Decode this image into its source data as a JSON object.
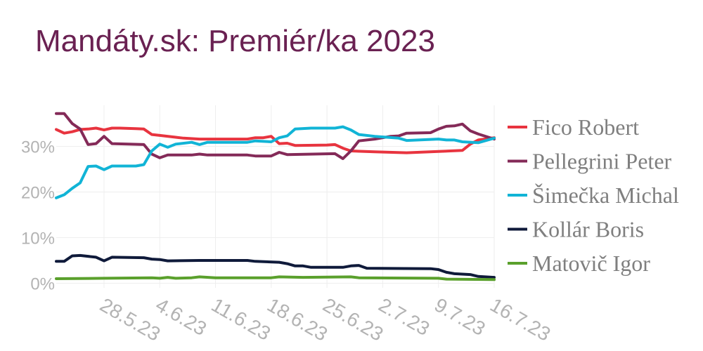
{
  "title": "Mandáty.sk: Premiér/ka 2023",
  "chart_data": {
    "type": "line",
    "title": "Mandáty.sk: Premiér/ka 2023",
    "xlabel": "",
    "ylabel": "",
    "x_ticks": [
      {
        "label": "28.5.23",
        "date": "2023-05-28"
      },
      {
        "label": "4.6.23",
        "date": "2023-06-04"
      },
      {
        "label": "11.6.23",
        "date": "2023-06-11"
      },
      {
        "label": "18.6.23",
        "date": "2023-06-18"
      },
      {
        "label": "25.6.23",
        "date": "2023-06-25"
      },
      {
        "label": "2.7.23",
        "date": "2023-07-02"
      },
      {
        "label": "9.7.23",
        "date": "2023-07-09"
      },
      {
        "label": "16.7.23",
        "date": "2023-07-16"
      }
    ],
    "xlim": [
      "2023-05-22",
      "2023-07-16"
    ],
    "y_ticks": [
      {
        "label": "0%",
        "value": 0
      },
      {
        "label": "10%",
        "value": 10
      },
      {
        "label": "20%",
        "value": 20
      },
      {
        "label": "30%",
        "value": 30
      }
    ],
    "ylim": [
      -1,
      39
    ],
    "grid": true,
    "legend_position": "right",
    "series": [
      {
        "name": "Fico Robert",
        "color": "#e8343f",
        "points": [
          [
            "2023-05-22",
            33.7
          ],
          [
            "2023-05-23",
            32.9
          ],
          [
            "2023-05-24",
            33.2
          ],
          [
            "2023-05-25",
            33.7
          ],
          [
            "2023-05-26",
            33.8
          ],
          [
            "2023-05-27",
            34.0
          ],
          [
            "2023-05-28",
            33.6
          ],
          [
            "2023-05-29",
            34.0
          ],
          [
            "2023-05-30",
            34.0
          ],
          [
            "2023-06-01",
            33.9
          ],
          [
            "2023-06-02",
            33.8
          ],
          [
            "2023-06-03",
            32.6
          ],
          [
            "2023-06-04",
            32.4
          ],
          [
            "2023-06-06",
            32.0
          ],
          [
            "2023-06-07",
            31.8
          ],
          [
            "2023-06-09",
            31.6
          ],
          [
            "2023-06-11",
            31.6
          ],
          [
            "2023-06-13",
            31.6
          ],
          [
            "2023-06-15",
            31.6
          ],
          [
            "2023-06-16",
            31.9
          ],
          [
            "2023-06-17",
            31.9
          ],
          [
            "2023-06-18",
            32.2
          ],
          [
            "2023-06-19",
            30.6
          ],
          [
            "2023-06-20",
            30.7
          ],
          [
            "2023-06-21",
            30.2
          ],
          [
            "2023-06-25",
            30.3
          ],
          [
            "2023-06-26",
            30.4
          ],
          [
            "2023-06-27",
            29.6
          ],
          [
            "2023-06-28",
            29.0
          ],
          [
            "2023-07-01",
            28.8
          ],
          [
            "2023-07-05",
            28.6
          ],
          [
            "2023-07-09",
            28.9
          ],
          [
            "2023-07-12",
            29.1
          ],
          [
            "2023-07-13",
            30.5
          ],
          [
            "2023-07-14",
            31.4
          ],
          [
            "2023-07-16",
            31.9
          ]
        ]
      },
      {
        "name": "Pellegrini Peter",
        "color": "#842a58",
        "points": [
          [
            "2023-05-22",
            37.2
          ],
          [
            "2023-05-23",
            37.2
          ],
          [
            "2023-05-24",
            35.0
          ],
          [
            "2023-05-25",
            33.8
          ],
          [
            "2023-05-26",
            30.4
          ],
          [
            "2023-05-27",
            30.6
          ],
          [
            "2023-05-28",
            32.2
          ],
          [
            "2023-05-29",
            30.6
          ],
          [
            "2023-06-02",
            30.4
          ],
          [
            "2023-06-03",
            28.3
          ],
          [
            "2023-06-04",
            27.5
          ],
          [
            "2023-06-05",
            28.1
          ],
          [
            "2023-06-08",
            28.1
          ],
          [
            "2023-06-09",
            28.3
          ],
          [
            "2023-06-10",
            28.1
          ],
          [
            "2023-06-15",
            28.1
          ],
          [
            "2023-06-16",
            27.9
          ],
          [
            "2023-06-18",
            27.9
          ],
          [
            "2023-06-19",
            28.7
          ],
          [
            "2023-06-20",
            28.2
          ],
          [
            "2023-06-26",
            28.4
          ],
          [
            "2023-06-27",
            27.3
          ],
          [
            "2023-06-28",
            29.0
          ],
          [
            "2023-06-29",
            31.2
          ],
          [
            "2023-07-01",
            31.6
          ],
          [
            "2023-07-03",
            32.2
          ],
          [
            "2023-07-04",
            32.3
          ],
          [
            "2023-07-05",
            32.9
          ],
          [
            "2023-07-08",
            33.0
          ],
          [
            "2023-07-09",
            33.8
          ],
          [
            "2023-07-10",
            34.4
          ],
          [
            "2023-07-11",
            34.5
          ],
          [
            "2023-07-12",
            34.9
          ],
          [
            "2023-07-13",
            33.4
          ],
          [
            "2023-07-14",
            32.7
          ],
          [
            "2023-07-16",
            31.6
          ]
        ]
      },
      {
        "name": "Šimečka Michal",
        "color": "#11b4d6",
        "points": [
          [
            "2023-05-22",
            18.7
          ],
          [
            "2023-05-23",
            19.4
          ],
          [
            "2023-05-24",
            20.8
          ],
          [
            "2023-05-25",
            22.0
          ],
          [
            "2023-05-26",
            25.6
          ],
          [
            "2023-05-27",
            25.7
          ],
          [
            "2023-05-28",
            24.9
          ],
          [
            "2023-05-29",
            25.7
          ],
          [
            "2023-06-01",
            25.7
          ],
          [
            "2023-06-02",
            26.0
          ],
          [
            "2023-06-03",
            29.0
          ],
          [
            "2023-06-04",
            30.5
          ],
          [
            "2023-06-05",
            29.8
          ],
          [
            "2023-06-06",
            30.5
          ],
          [
            "2023-06-08",
            30.9
          ],
          [
            "2023-06-09",
            30.4
          ],
          [
            "2023-06-10",
            30.9
          ],
          [
            "2023-06-15",
            30.9
          ],
          [
            "2023-06-16",
            31.2
          ],
          [
            "2023-06-18",
            31.0
          ],
          [
            "2023-06-19",
            31.9
          ],
          [
            "2023-06-20",
            32.3
          ],
          [
            "2023-06-21",
            33.8
          ],
          [
            "2023-06-23",
            34.0
          ],
          [
            "2023-06-26",
            34.0
          ],
          [
            "2023-06-27",
            34.3
          ],
          [
            "2023-06-28",
            33.6
          ],
          [
            "2023-06-29",
            32.6
          ],
          [
            "2023-07-01",
            32.2
          ],
          [
            "2023-07-04",
            31.8
          ],
          [
            "2023-07-05",
            31.3
          ],
          [
            "2023-07-09",
            31.6
          ],
          [
            "2023-07-10",
            31.4
          ],
          [
            "2023-07-11",
            31.4
          ],
          [
            "2023-07-12",
            31.0
          ],
          [
            "2023-07-14",
            30.8
          ],
          [
            "2023-07-16",
            31.8
          ]
        ]
      },
      {
        "name": "Kollár Boris",
        "color": "#0f1a3a",
        "points": [
          [
            "2023-05-22",
            4.8
          ],
          [
            "2023-05-23",
            4.8
          ],
          [
            "2023-05-24",
            6.0
          ],
          [
            "2023-05-25",
            6.1
          ],
          [
            "2023-05-27",
            5.7
          ],
          [
            "2023-05-28",
            4.9
          ],
          [
            "2023-05-29",
            5.7
          ],
          [
            "2023-06-02",
            5.6
          ],
          [
            "2023-06-03",
            5.3
          ],
          [
            "2023-06-04",
            5.2
          ],
          [
            "2023-06-05",
            4.9
          ],
          [
            "2023-06-09",
            5.0
          ],
          [
            "2023-06-15",
            5.0
          ],
          [
            "2023-06-16",
            4.8
          ],
          [
            "2023-06-19",
            4.6
          ],
          [
            "2023-06-20",
            4.3
          ],
          [
            "2023-06-21",
            3.8
          ],
          [
            "2023-06-22",
            3.8
          ],
          [
            "2023-06-23",
            3.5
          ],
          [
            "2023-06-27",
            3.5
          ],
          [
            "2023-06-28",
            3.8
          ],
          [
            "2023-06-29",
            3.9
          ],
          [
            "2023-06-30",
            3.3
          ],
          [
            "2023-07-08",
            3.2
          ],
          [
            "2023-07-09",
            3.0
          ],
          [
            "2023-07-10",
            2.4
          ],
          [
            "2023-07-11",
            2.1
          ],
          [
            "2023-07-12",
            2.0
          ],
          [
            "2023-07-13",
            1.9
          ],
          [
            "2023-07-14",
            1.5
          ],
          [
            "2023-07-16",
            1.3
          ]
        ]
      },
      {
        "name": "Matovič Igor",
        "color": "#5aa02c",
        "points": [
          [
            "2023-05-22",
            1.0
          ],
          [
            "2023-05-28",
            1.1
          ],
          [
            "2023-06-03",
            1.2
          ],
          [
            "2023-06-04",
            1.1
          ],
          [
            "2023-06-05",
            1.3
          ],
          [
            "2023-06-06",
            1.1
          ],
          [
            "2023-06-08",
            1.2
          ],
          [
            "2023-06-09",
            1.4
          ],
          [
            "2023-06-11",
            1.2
          ],
          [
            "2023-06-18",
            1.2
          ],
          [
            "2023-06-19",
            1.4
          ],
          [
            "2023-06-22",
            1.3
          ],
          [
            "2023-06-28",
            1.4
          ],
          [
            "2023-06-29",
            1.2
          ],
          [
            "2023-07-09",
            1.1
          ],
          [
            "2023-07-10",
            0.9
          ],
          [
            "2023-07-16",
            0.8
          ]
        ]
      }
    ]
  }
}
